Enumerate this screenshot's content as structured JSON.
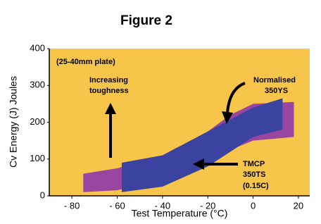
{
  "chart_data": {
    "type": "band",
    "title": "Figure 2",
    "x_label": "Test Temperature (°C)",
    "y_label": "Cv Energy (J) Joules",
    "xlim": [
      -90,
      25
    ],
    "ylim": [
      0,
      400
    ],
    "xticks": [
      {
        "value": -80,
        "label": "- 80"
      },
      {
        "value": -60,
        "label": "- 60"
      },
      {
        "value": -40,
        "label": "- 40"
      },
      {
        "value": -20,
        "label": "- 20"
      },
      0,
      20
    ],
    "yticks": [
      0,
      100,
      200,
      300,
      400
    ],
    "background": "#f7c54a",
    "annotations": [
      "(25-40mm plate)",
      "Increasing",
      "toughness",
      "Normalised",
      "350YS",
      "TMCP",
      "350TS",
      "(0.15C)"
    ],
    "series": [
      {
        "name": "Normalised 350YS",
        "color": "#9a45a0",
        "x": [
          -75,
          -60,
          -40,
          -20,
          -10,
          0,
          18
        ],
        "lower": [
          10,
          15,
          45,
          100,
          125,
          150,
          160
        ],
        "upper": [
          60,
          75,
          110,
          175,
          220,
          250,
          255
        ]
      },
      {
        "name": "TMCP 350TS",
        "color": "#3b43a0",
        "x": [
          -58,
          -40,
          -20,
          0,
          13
        ],
        "lower": [
          10,
          25,
          80,
          160,
          180
        ],
        "upper": [
          90,
          110,
          175,
          240,
          265
        ]
      }
    ]
  }
}
